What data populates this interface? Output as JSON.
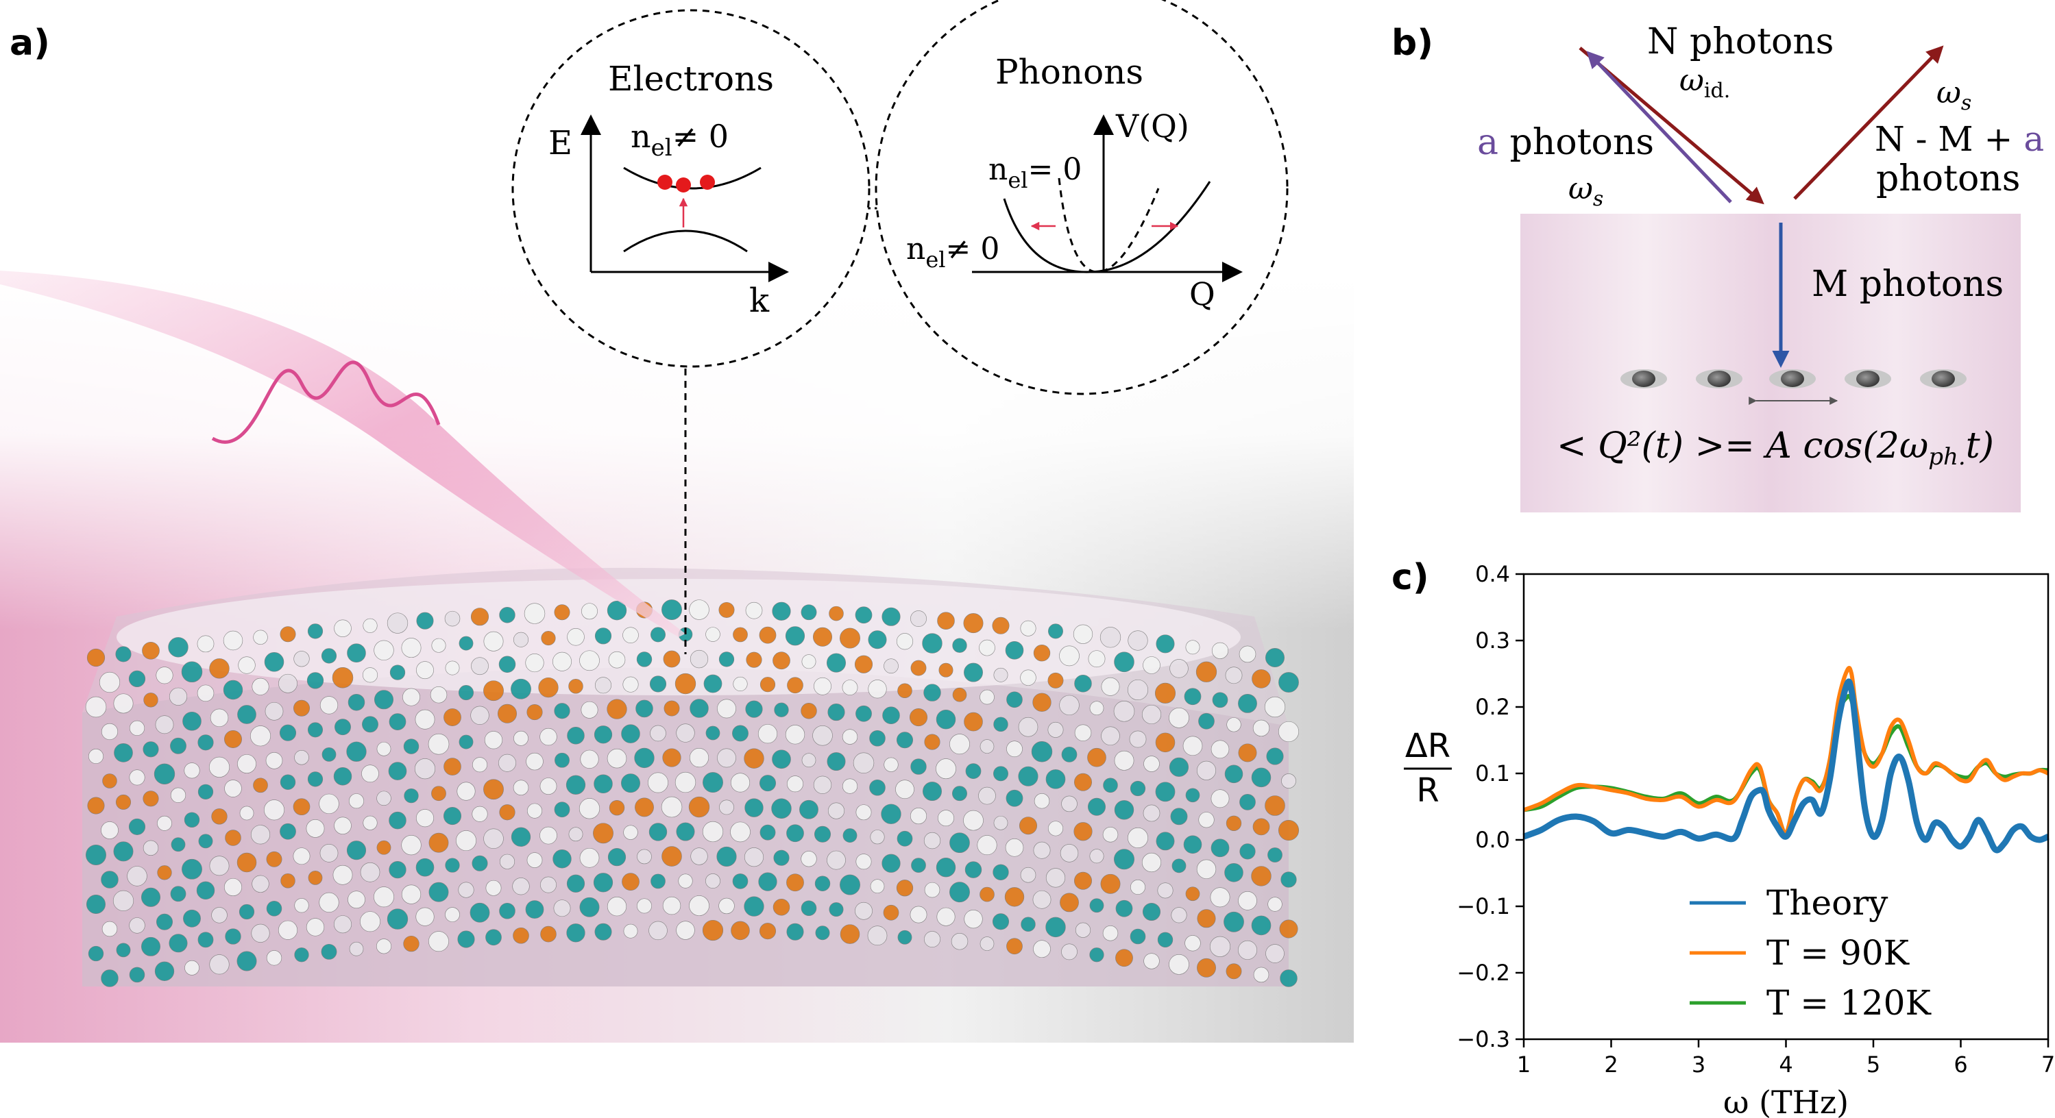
{
  "panels": {
    "a": {
      "label": "a)",
      "electrons": {
        "title": "Electrons",
        "energy_axis": "E",
        "k_axis": "k",
        "n_el_prefix": "n",
        "n_el_sub": "el",
        "n_el_nonzero": "≠ 0"
      },
      "phonons": {
        "title": "Phonons",
        "v_axis": "V(Q)",
        "q_axis": "Q",
        "n_el_prefix": "n",
        "n_el_sub": "el",
        "n_el_zero": "= 0",
        "n_el_nonzero": "≠ 0"
      }
    },
    "b": {
      "label": "b)",
      "n_photons": "N photons",
      "omega_idler": "ω",
      "omega_idler_sub": "id.",
      "a_letter": "a",
      "a_photons_rest": " photons",
      "omega_s_left": "ω",
      "omega_s_sub": "s",
      "omega_s_right": "ω",
      "nma_line1": "N - M + ",
      "nma_a": "a",
      "nma_line2": "photons",
      "m_photons": "M photons",
      "equation": "< Q²(t) >= A cos(2ω",
      "equation_sub": "ph.",
      "equation_end": "t)",
      "colors": {
        "violet": "#6a4c9c",
        "darkred": "#8b1a1a",
        "blue": "#2e56a6"
      }
    },
    "c": {
      "label": "c)",
      "ylabel_top": "ΔR",
      "ylabel_bottom": "R"
    }
  },
  "chart_data": {
    "type": "line",
    "title": "",
    "xlabel": "ω (THz)",
    "ylabel": "ΔR/R",
    "xlim": [
      1,
      7
    ],
    "ylim": [
      -0.3,
      0.4
    ],
    "xticks": [
      1,
      2,
      3,
      4,
      5,
      6,
      7
    ],
    "yticks": [
      -0.3,
      -0.2,
      -0.1,
      0.0,
      0.1,
      0.2,
      0.3,
      0.4
    ],
    "grid": false,
    "legend_position": "bottom-center",
    "series": [
      {
        "name": "Theory",
        "color": "#1f77b4",
        "x": [
          1.0,
          1.2,
          1.4,
          1.6,
          1.8,
          2.0,
          2.2,
          2.4,
          2.6,
          2.8,
          3.0,
          3.2,
          3.4,
          3.5,
          3.6,
          3.7,
          3.75,
          3.8,
          3.9,
          4.0,
          4.1,
          4.2,
          4.3,
          4.4,
          4.5,
          4.6,
          4.7,
          4.75,
          4.8,
          4.9,
          5.0,
          5.1,
          5.2,
          5.3,
          5.4,
          5.5,
          5.6,
          5.7,
          5.8,
          5.9,
          6.0,
          6.1,
          6.2,
          6.3,
          6.4,
          6.5,
          6.6,
          6.7,
          6.8,
          6.9,
          7.0
        ],
        "y": [
          0.005,
          0.015,
          0.03,
          0.035,
          0.028,
          0.01,
          0.015,
          0.01,
          0.005,
          0.012,
          0.002,
          0.008,
          0.002,
          0.03,
          0.065,
          0.075,
          0.07,
          0.045,
          0.02,
          0.005,
          0.03,
          0.055,
          0.06,
          0.04,
          0.09,
          0.18,
          0.235,
          0.225,
          0.17,
          0.05,
          0.005,
          0.03,
          0.1,
          0.125,
          0.09,
          0.025,
          0.0,
          0.025,
          0.02,
          0.0,
          -0.01,
          0.005,
          0.03,
          0.01,
          -0.015,
          -0.005,
          0.015,
          0.02,
          0.005,
          0.0,
          0.005
        ]
      },
      {
        "name": "T = 90K",
        "color": "#ff7f0e",
        "x": [
          1.0,
          1.2,
          1.4,
          1.6,
          1.8,
          2.0,
          2.2,
          2.4,
          2.6,
          2.8,
          3.0,
          3.2,
          3.4,
          3.6,
          3.7,
          3.8,
          3.9,
          4.0,
          4.1,
          4.2,
          4.3,
          4.4,
          4.5,
          4.6,
          4.7,
          4.75,
          4.8,
          4.9,
          5.0,
          5.1,
          5.2,
          5.3,
          5.4,
          5.5,
          5.6,
          5.7,
          5.8,
          5.9,
          6.0,
          6.1,
          6.2,
          6.3,
          6.4,
          6.5,
          6.6,
          6.7,
          6.8,
          6.9,
          7.0
        ],
        "y": [
          0.045,
          0.055,
          0.07,
          0.082,
          0.08,
          0.075,
          0.07,
          0.062,
          0.06,
          0.065,
          0.05,
          0.06,
          0.058,
          0.105,
          0.11,
          0.06,
          0.04,
          0.01,
          0.06,
          0.09,
          0.085,
          0.075,
          0.12,
          0.21,
          0.255,
          0.25,
          0.2,
          0.13,
          0.11,
          0.13,
          0.17,
          0.18,
          0.15,
          0.11,
          0.1,
          0.115,
          0.11,
          0.1,
          0.09,
          0.09,
          0.11,
          0.12,
          0.1,
          0.09,
          0.095,
          0.1,
          0.1,
          0.105,
          0.1
        ]
      },
      {
        "name": "T = 120K",
        "color": "#2ca02c",
        "x": [
          1.0,
          1.2,
          1.4,
          1.6,
          1.8,
          2.0,
          2.2,
          2.4,
          2.6,
          2.8,
          3.0,
          3.2,
          3.4,
          3.6,
          3.7,
          3.8,
          3.9,
          4.0,
          4.1,
          4.2,
          4.3,
          4.4,
          4.5,
          4.6,
          4.7,
          4.75,
          4.8,
          4.9,
          5.0,
          5.1,
          5.2,
          5.3,
          5.4,
          5.5,
          5.6,
          5.7,
          5.8,
          5.9,
          6.0,
          6.1,
          6.2,
          6.3,
          6.4,
          6.5,
          6.6,
          6.7,
          6.8,
          6.9,
          7.0
        ],
        "y": [
          0.045,
          0.05,
          0.065,
          0.078,
          0.08,
          0.078,
          0.072,
          0.065,
          0.062,
          0.07,
          0.055,
          0.065,
          0.06,
          0.1,
          0.105,
          0.06,
          0.04,
          0.01,
          0.06,
          0.09,
          0.088,
          0.078,
          0.115,
          0.19,
          0.215,
          0.21,
          0.18,
          0.13,
          0.115,
          0.13,
          0.16,
          0.17,
          0.14,
          0.11,
          0.1,
          0.112,
          0.11,
          0.1,
          0.095,
          0.095,
          0.11,
          0.115,
          0.1,
          0.095,
          0.098,
          0.1,
          0.1,
          0.105,
          0.105
        ]
      }
    ]
  }
}
